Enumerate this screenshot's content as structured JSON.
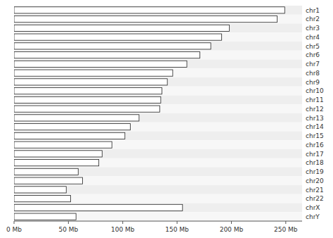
{
  "chart_data": {
    "type": "bar",
    "orientation": "horizontal",
    "categories": [
      "chr1",
      "chr2",
      "chr3",
      "chr4",
      "chr5",
      "chr6",
      "chr7",
      "chr8",
      "chr9",
      "chr10",
      "chr11",
      "chr12",
      "chr13",
      "chr14",
      "chr15",
      "chr16",
      "chr17",
      "chr18",
      "chr19",
      "chr20",
      "chr21",
      "chr22",
      "chrX",
      "chrY"
    ],
    "values": [
      249,
      242,
      198,
      191,
      181,
      171,
      159,
      146,
      141,
      136,
      135,
      134,
      115,
      107,
      102,
      90,
      81,
      78,
      59,
      63,
      48,
      52,
      155,
      57
    ],
    "color": "#ffffff",
    "xlim": [
      0,
      265
    ],
    "xticks": [
      {
        "value": 0,
        "label": "0 Mb"
      },
      {
        "value": 50,
        "label": "50 Mb"
      },
      {
        "value": 100,
        "label": "100 Mb"
      },
      {
        "value": 150,
        "label": "150 Mb"
      },
      {
        "value": 200,
        "label": "200 Mb"
      },
      {
        "value": 250,
        "label": "250 Mb"
      }
    ],
    "grid": false
  }
}
